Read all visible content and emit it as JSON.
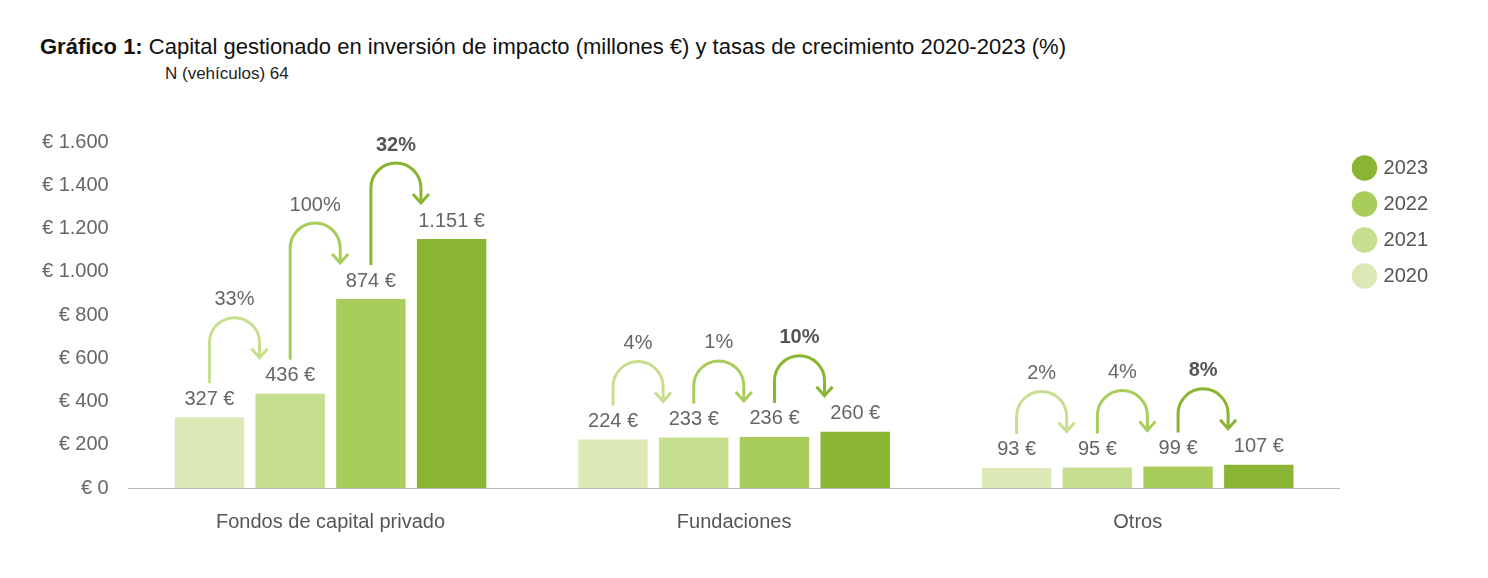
{
  "chart_data": {
    "type": "bar",
    "title": "Gráfico 1: Capital gestionado en inversión de impacto (millones €) y tasas de crecimiento 2020-2023 (%)",
    "subtitle": "N (vehículos) 64",
    "categories": [
      "Fondos de capital privado",
      "Fundaciones",
      "Otros"
    ],
    "series": [
      {
        "name": "2020",
        "color": "#dce9b6",
        "values": [
          327,
          224,
          93
        ],
        "value_labels": [
          "327 €",
          "224 €",
          "93 €"
        ]
      },
      {
        "name": "2021",
        "color": "#c6de8e",
        "values": [
          436,
          233,
          95
        ],
        "value_labels": [
          "436 €",
          "233 €",
          "95 €"
        ]
      },
      {
        "name": "2022",
        "color": "#a9cd5b",
        "values": [
          874,
          236,
          99
        ],
        "value_labels": [
          "874 €",
          "236 €",
          "99 €"
        ]
      },
      {
        "name": "2023",
        "color": "#8ab532",
        "values": [
          1151,
          260,
          107
        ],
        "value_labels": [
          "1.151 €",
          "260 €",
          "107 €"
        ]
      }
    ],
    "ylim": [
      0,
      1600
    ],
    "yticks": [
      {
        "value": 0,
        "label": "€ 0"
      },
      {
        "value": 200,
        "label": "€ 200"
      },
      {
        "value": 400,
        "label": "€ 400"
      },
      {
        "value": 600,
        "label": "€ 600"
      },
      {
        "value": 800,
        "label": "€ 800"
      },
      {
        "value": 1000,
        "label": "€ 1.000"
      },
      {
        "value": 1200,
        "label": "€ 1.200"
      },
      {
        "value": 1400,
        "label": "€ 1.400"
      },
      {
        "value": 1600,
        "label": "€ 1.600"
      }
    ],
    "grid": false,
    "legend": "right",
    "data_labels": true,
    "growth_rates": [
      {
        "category": "Fondos de capital privado",
        "values": [
          33,
          100,
          32
        ],
        "value_labels": [
          "33%",
          "100%",
          "32%"
        ]
      },
      {
        "category": "Fundaciones",
        "values": [
          4,
          1,
          10
        ],
        "value_labels": [
          "4%",
          "1%",
          "10%"
        ]
      },
      {
        "category": "Otros",
        "values": [
          2,
          4,
          8
        ],
        "value_labels": [
          "2%",
          "4%",
          "8%"
        ]
      }
    ]
  }
}
